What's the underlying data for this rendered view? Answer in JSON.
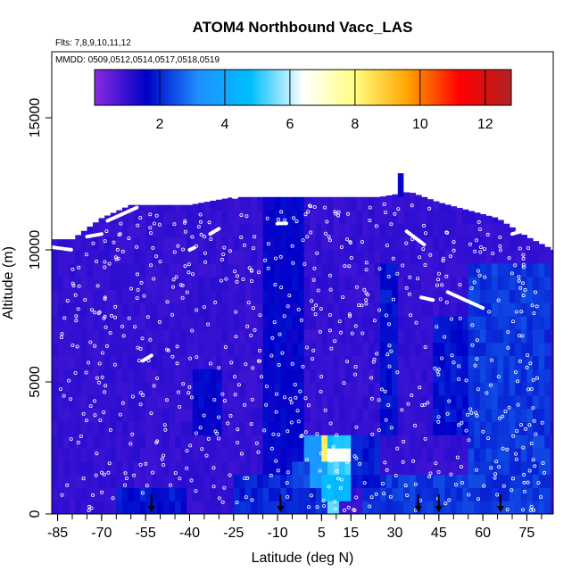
{
  "chart_data": {
    "type": "heatmap",
    "title": "ATOM4 Northbound Vacc_LAS",
    "flights_label": "Flts: 7,8,9,10,11,12",
    "mmdd_label": "MMDD: 0509,0512,0514,0517,0518,0519",
    "xlabel": "Latitude (deg N)",
    "ylabel": "Altitude (m)",
    "xlim": [
      -87,
      84
    ],
    "ylim": [
      0,
      17500
    ],
    "x_ticks": [
      -85,
      -70,
      -55,
      -40,
      -25,
      -10,
      5,
      15,
      30,
      45,
      60,
      75
    ],
    "y_ticks": [
      0,
      5000,
      10000,
      15000
    ],
    "colorbar": {
      "range": [
        0,
        12.8
      ],
      "ticks": [
        2,
        4,
        6,
        8,
        10,
        12
      ],
      "colors": [
        "#8a2be2",
        "#0000c8",
        "#1e90ff",
        "#00bfff",
        "#ffffff",
        "#ffff80",
        "#ffa500",
        "#ff0000",
        "#b22222"
      ]
    },
    "background_value": 1.0,
    "ceiling_profile": [
      [
        -87,
        10400
      ],
      [
        -80,
        10400
      ],
      [
        -70,
        11200
      ],
      [
        -60,
        11700
      ],
      [
        -40,
        11700
      ],
      [
        -25,
        12000
      ],
      [
        -10,
        12000
      ],
      [
        5,
        12000
      ],
      [
        15,
        12000
      ],
      [
        25,
        12000
      ],
      [
        35,
        12200
      ],
      [
        45,
        11800
      ],
      [
        55,
        11500
      ],
      [
        65,
        11200
      ],
      [
        75,
        10500
      ],
      [
        84,
        10000
      ]
    ],
    "enhanced_regions": [
      {
        "lat": [
          -14,
          0
        ],
        "alt": [
          0,
          12000
        ],
        "value": 1.6
      },
      {
        "lat": [
          25,
          32
        ],
        "alt": [
          3000,
          9500
        ],
        "value": 1.8
      },
      {
        "lat": [
          44,
          60
        ],
        "alt": [
          3000,
          7500
        ],
        "value": 1.8
      },
      {
        "lat": [
          55,
          84
        ],
        "alt": [
          0,
          9500
        ],
        "value": 2.2
      },
      {
        "lat": [
          -65,
          -40
        ],
        "alt": [
          0,
          1000
        ],
        "value": 1.8
      },
      {
        "lat": [
          -25,
          8
        ],
        "alt": [
          0,
          1500
        ],
        "value": 2.0
      },
      {
        "lat": [
          20,
          55
        ],
        "alt": [
          0,
          1500
        ],
        "value": 2.2
      },
      {
        "lat": [
          -38,
          -28
        ],
        "alt": [
          3000,
          5500
        ],
        "value": 1.6
      },
      {
        "lat": [
          0,
          16
        ],
        "alt": [
          800,
          3000
        ],
        "value": 3.5
      },
      {
        "lat": [
          16,
          26
        ],
        "alt": [
          800,
          3000
        ],
        "value": 1.9
      },
      {
        "lat": [
          7,
          16
        ],
        "alt": [
          1500,
          3000
        ],
        "value": 5.2
      },
      {
        "lat": [
          8,
          15
        ],
        "alt": [
          1800,
          2500
        ],
        "value": 6.5
      },
      {
        "lat": [
          5,
          7
        ],
        "alt": [
          2000,
          2800
        ],
        "value": 8.2
      },
      {
        "lat": [
          7,
          9
        ],
        "alt": [
          2400,
          2800
        ],
        "value": 4.8
      },
      {
        "lat": [
          6,
          15
        ],
        "alt": [
          600,
          1300
        ],
        "value": 4.6
      },
      {
        "lat": [
          8,
          12
        ],
        "alt": [
          200,
          600
        ],
        "value": 5.4
      },
      {
        "lat": [
          -5,
          2
        ],
        "alt": [
          1200,
          1800
        ],
        "value": 2.4
      }
    ],
    "flight_tracks": [
      [
        [
          -87,
          10100
        ],
        [
          -80,
          10000
        ]
      ],
      [
        [
          -75,
          10500
        ],
        [
          -70,
          10600
        ]
      ],
      [
        [
          -68,
          11100
        ],
        [
          -58,
          11600
        ]
      ],
      [
        [
          -25,
          12000
        ],
        [
          -24,
          12000
        ]
      ],
      [
        [
          -40,
          10000
        ],
        [
          -38,
          10100
        ]
      ],
      [
        [
          -33,
          10600
        ],
        [
          -30,
          10800
        ]
      ],
      [
        [
          -10,
          11000
        ],
        [
          -7,
          11000
        ]
      ],
      [
        [
          34,
          10700
        ],
        [
          40,
          10200
        ]
      ],
      [
        [
          48,
          8400
        ],
        [
          60,
          7800
        ]
      ],
      [
        [
          39,
          8200
        ],
        [
          43,
          8100
        ]
      ],
      [
        [
          70,
          10600
        ],
        [
          76,
          10800
        ]
      ],
      [
        [
          -56,
          5800
        ],
        [
          -53,
          6000
        ]
      ]
    ],
    "arrows_lat": [
      -53,
      -9,
      38,
      45,
      66
    ]
  }
}
